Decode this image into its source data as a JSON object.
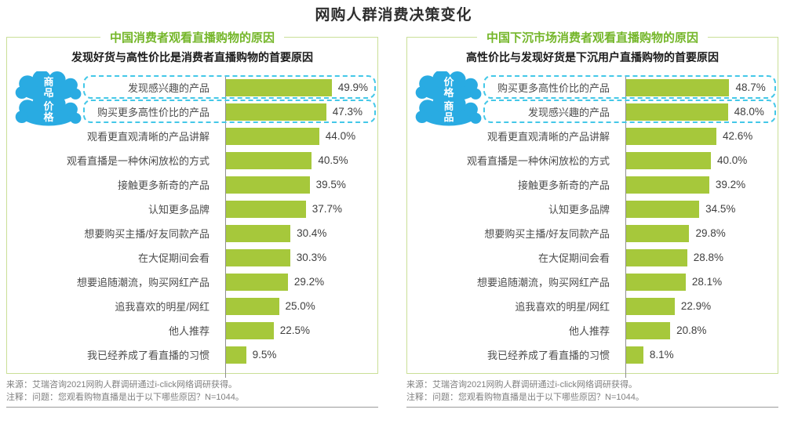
{
  "page_title": "网购人群消费决策变化",
  "footer": {
    "source": "来源：艾瑞咨询2021网购人群调研通过i-click网络调研获得。",
    "note": "注释：问题：您观看购物直播是出于以下哪些原因？N=1044。"
  },
  "colors": {
    "bar_green": "#a6c83b",
    "title_green": "#74b629",
    "panel_border_green": "#cadf97",
    "cloud_blue": "#29abe2",
    "highlight_dash_cyan": "#44c8e8",
    "main_title_gray": "#2e2e2e"
  },
  "chart_data": [
    {
      "type": "bar",
      "orientation": "horizontal",
      "title": "中国消费者观看直播购物的原因",
      "subtitle": "发现好货与高性价比是消费者直播购物的首要原因",
      "categories": [
        "发现感兴趣的产品",
        "购买更多高性价比的产品",
        "观看更直观清晰的产品讲解",
        "观看直播是一种休闲放松的方式",
        "接触更多新奇的产品",
        "认知更多品牌",
        "想要购买主播/好友同款产品",
        "在大促期间会看",
        "想要追随潮流，购买网红产品",
        "追我喜欢的明星/网红",
        "他人推荐",
        "我已经养成了看直播的习惯"
      ],
      "values": [
        49.9,
        47.3,
        44.0,
        40.5,
        39.5,
        37.7,
        30.4,
        30.3,
        29.2,
        25.0,
        22.5,
        9.5
      ],
      "value_suffix": "%",
      "xlim": [
        0,
        55
      ],
      "grid": false,
      "highlighted_rows": [
        0,
        1
      ],
      "badge_annotations": [
        {
          "row": 0,
          "label": "商品"
        },
        {
          "row": 1,
          "label": "价格"
        }
      ]
    },
    {
      "type": "bar",
      "orientation": "horizontal",
      "title": "中国下沉市场消费者观看直播购物的原因",
      "subtitle": "高性价比与发现好货是下沉用户直播购物的首要原因",
      "categories": [
        "购买更多高性价比的产品",
        "发现感兴趣的产品",
        "观看更直观清晰的产品讲解",
        "观看直播是一种休闲放松的方式",
        "接触更多新奇的产品",
        "认知更多品牌",
        "想要购买主播/好友同款产品",
        "在大促期间会看",
        "想要追随潮流，购买网红产品",
        "追我喜欢的明星/网红",
        "他人推荐",
        "我已经养成了看直播的习惯"
      ],
      "values": [
        48.7,
        48.0,
        42.6,
        40.0,
        39.2,
        34.5,
        29.8,
        28.8,
        28.1,
        22.9,
        20.8,
        8.1
      ],
      "value_suffix": "%",
      "xlim": [
        0,
        55
      ],
      "grid": false,
      "highlighted_rows": [
        0,
        1
      ],
      "badge_annotations": [
        {
          "row": 0,
          "label": "价格"
        },
        {
          "row": 1,
          "label": "商品"
        }
      ]
    }
  ]
}
